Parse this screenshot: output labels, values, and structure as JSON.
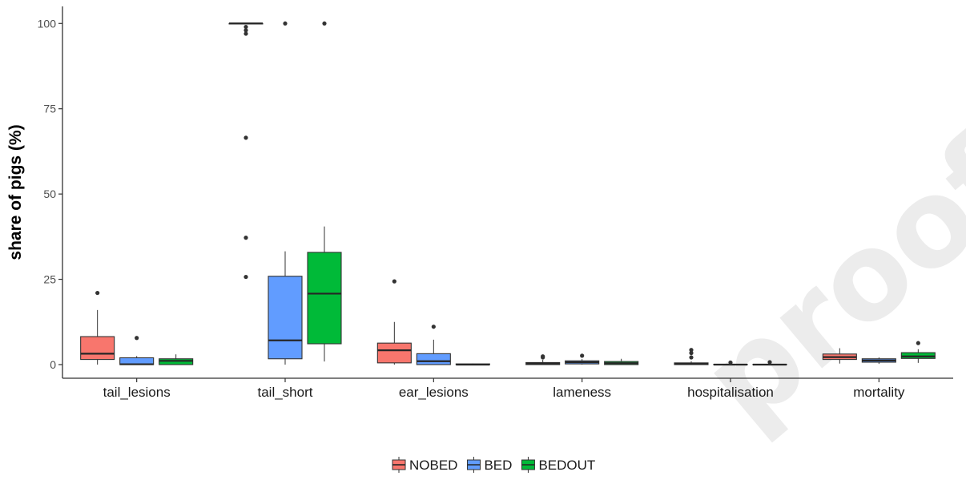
{
  "watermark": "proofs",
  "chart_data": {
    "type": "box",
    "ylabel": "share of pigs (%)",
    "xlabel": "",
    "ylim": [
      -4,
      105
    ],
    "yticks": [
      0,
      25,
      50,
      75,
      100
    ],
    "categories": [
      "tail_lesions",
      "tail_short",
      "ear_lesions",
      "lameness",
      "hospitalisation",
      "mortality"
    ],
    "legend_position": "bottom",
    "grid": false,
    "series": [
      {
        "name": "NOBED",
        "color": "#F8766D",
        "boxes": [
          {
            "whisker_low": 0,
            "q1": 1.5,
            "median": 3.2,
            "q3": 8.2,
            "whisker_high": 16,
            "outliers": [
              21
            ]
          },
          {
            "whisker_low": 100,
            "q1": 100,
            "median": 100,
            "q3": 100,
            "whisker_high": 100,
            "outliers": [
              99,
              98,
              97,
              66.5,
              37.2,
              25.7
            ]
          },
          {
            "whisker_low": 0,
            "q1": 0.5,
            "median": 4.2,
            "q3": 6.3,
            "whisker_high": 12.5,
            "outliers": [
              24.4
            ]
          },
          {
            "whisker_low": 0,
            "q1": 0,
            "median": 0.3,
            "q3": 0.6,
            "whisker_high": 1.4,
            "outliers": [
              2.1,
              2.4
            ]
          },
          {
            "whisker_low": 0,
            "q1": 0,
            "median": 0.2,
            "q3": 0.5,
            "whisker_high": 1,
            "outliers": [
              2.1,
              3.4,
              4.3
            ]
          },
          {
            "whisker_low": 0.3,
            "q1": 1.5,
            "median": 2.2,
            "q3": 3.1,
            "whisker_high": 4.8,
            "outliers": []
          }
        ]
      },
      {
        "name": "BED",
        "color": "#619CFF",
        "boxes": [
          {
            "whisker_low": 0,
            "q1": 0,
            "median": 0.1,
            "q3": 2,
            "whisker_high": 2.5,
            "outliers": [
              7.8
            ]
          },
          {
            "whisker_low": 0,
            "q1": 1.7,
            "median": 7.1,
            "q3": 25.9,
            "whisker_high": 33.2,
            "outliers": [
              100
            ]
          },
          {
            "whisker_low": 0,
            "q1": 0,
            "median": 1,
            "q3": 3.2,
            "whisker_high": 7.3,
            "outliers": [
              11.1
            ]
          },
          {
            "whisker_low": 0,
            "q1": 0.2,
            "median": 0.7,
            "q3": 1.1,
            "whisker_high": 1.6,
            "outliers": [
              2.6
            ]
          },
          {
            "whisker_low": 0,
            "q1": 0,
            "median": 0,
            "q3": 0.1,
            "whisker_high": 0.3,
            "outliers": [
              0.6
            ]
          },
          {
            "whisker_low": 0.2,
            "q1": 0.7,
            "median": 1.2,
            "q3": 1.7,
            "whisker_high": 2.1,
            "outliers": []
          }
        ]
      },
      {
        "name": "BEDOUT",
        "color": "#00BA38",
        "boxes": [
          {
            "whisker_low": 0,
            "q1": 0,
            "median": 1.1,
            "q3": 1.7,
            "whisker_high": 3,
            "outliers": []
          },
          {
            "whisker_low": 0.9,
            "q1": 6.1,
            "median": 20.8,
            "q3": 32.9,
            "whisker_high": 40.5,
            "outliers": [
              100
            ]
          },
          {
            "whisker_low": 0,
            "q1": 0,
            "median": 0,
            "q3": 0.2,
            "whisker_high": 0.3,
            "outliers": []
          },
          {
            "whisker_low": 0,
            "q1": 0,
            "median": 0.4,
            "q3": 0.9,
            "whisker_high": 1.7,
            "outliers": []
          },
          {
            "whisker_low": 0,
            "q1": 0,
            "median": 0,
            "q3": 0.1,
            "whisker_high": 0.3,
            "outliers": [
              0.7
            ]
          },
          {
            "whisker_low": 0.5,
            "q1": 1.8,
            "median": 2.4,
            "q3": 3.5,
            "whisker_high": 4.5,
            "outliers": [
              6.3
            ]
          }
        ]
      }
    ]
  }
}
